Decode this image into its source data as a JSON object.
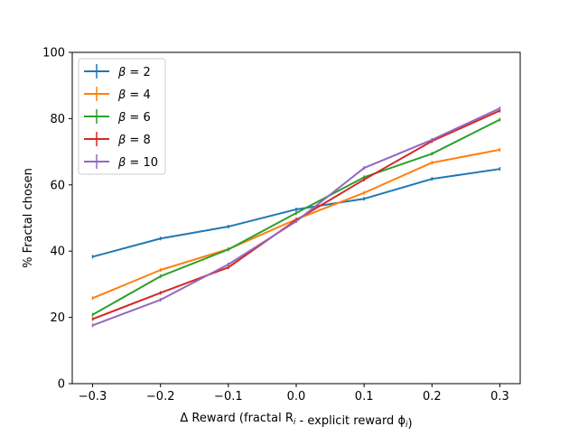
{
  "chart_data": {
    "type": "line",
    "title": "",
    "xlabel": "Δ Reward (fractal R",
    "xlabel_sub_1": "i",
    "xlabel_mid": " - explicit reward ϕ",
    "xlabel_sub_2": "i",
    "xlabel_end": ")",
    "ylabel": "% Fractal chosen",
    "xlim": [
      -0.33,
      0.33
    ],
    "ylim": [
      0,
      100
    ],
    "xticks": [
      -0.3,
      -0.2,
      -0.1,
      0.0,
      0.1,
      0.2,
      0.3
    ],
    "xtick_labels": [
      "−0.3",
      "−0.2",
      "−0.1",
      "0.0",
      "0.1",
      "0.2",
      "0.3"
    ],
    "yticks": [
      0,
      20,
      40,
      60,
      80,
      100
    ],
    "ytick_labels": [
      "0",
      "20",
      "40",
      "60",
      "80",
      "100"
    ],
    "grid": false,
    "legend_position": "top-left",
    "x": [
      -0.3,
      -0.2,
      -0.1,
      0.0,
      0.1,
      0.2,
      0.3
    ],
    "series": [
      {
        "name": "β = 2",
        "legend_sym": "β",
        "legend_val": " = 2",
        "color": "#1f77b4",
        "values": [
          38.3,
          43.8,
          47.4,
          52.6,
          55.8,
          61.8,
          64.8
        ]
      },
      {
        "name": "β = 4",
        "legend_sym": "β",
        "legend_val": " = 4",
        "color": "#ff7f0e",
        "values": [
          25.8,
          34.3,
          40.6,
          49.6,
          57.6,
          66.7,
          70.6
        ]
      },
      {
        "name": "β = 6",
        "legend_sym": "β",
        "legend_val": " = 6",
        "color": "#2ca02c",
        "values": [
          20.8,
          32.4,
          40.5,
          51.5,
          62.3,
          69.4,
          79.7
        ]
      },
      {
        "name": "β = 8",
        "legend_sym": "β",
        "legend_val": " = 8",
        "color": "#d62728",
        "values": [
          19.5,
          27.4,
          35.1,
          49.4,
          61.6,
          73.2,
          82.4
        ]
      },
      {
        "name": "β = 10",
        "legend_sym": "β",
        "legend_val": " = 10",
        "color": "#9467bd",
        "values": [
          17.6,
          25.3,
          36.0,
          49.0,
          65.1,
          73.6,
          83.1
        ]
      }
    ]
  }
}
